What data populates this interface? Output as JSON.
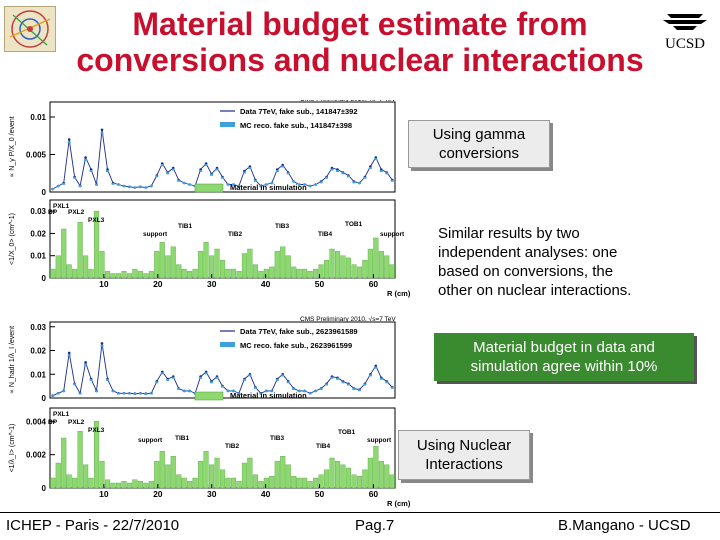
{
  "slide": {
    "title_line1": "Material budget estimate from",
    "title_line2": "conversions and nuclear interactions",
    "logo_text": "UCSD",
    "note_gamma_line1": "Using gamma",
    "note_gamma_line2": "conversions",
    "note_similar_line1": "Similar results by two",
    "note_similar_line2": "independent analyses: one",
    "note_similar_line3": "based on conversions, the",
    "note_similar_line4": "other on nuclear interactions.",
    "note_budget_line1": "Material budget in data and",
    "note_budget_line2": "simulation agree within 10%",
    "note_nuclear_line1": "Using Nuclear",
    "note_nuclear_line2": "Interactions",
    "footer_left": "ICHEP - Paris - 22/7/2010",
    "footer_center": "Pag.7",
    "footer_right": "B.Mangano - UCSD"
  },
  "colors": {
    "title": "#c8102e",
    "data": "#1a2a8a",
    "mc": "#3fa0e0",
    "material": "#8ed870",
    "green_box": "#3a8a30"
  },
  "chart_data": [
    {
      "type": "line",
      "panel": "conversions-rate",
      "title": "CMS Preliminary 2010, √s=7 TeV",
      "ylabel": "∝ N_γ P/X_0 /event",
      "y_ticks": [
        "0",
        "0.005",
        "0.01"
      ],
      "ylim": [
        0,
        0.012
      ],
      "x": [
        1,
        2,
        3,
        4,
        5,
        6,
        7,
        8,
        9,
        10,
        11,
        12,
        13,
        14,
        15,
        16,
        17,
        18,
        19,
        20,
        21,
        22,
        23,
        24,
        25,
        26,
        27,
        28,
        29,
        30,
        31,
        32,
        33,
        34,
        35,
        36,
        37,
        38,
        39,
        40,
        41,
        42,
        43,
        44,
        45,
        46,
        47,
        48,
        49,
        50,
        51,
        52,
        53,
        54,
        55,
        56,
        57,
        58,
        59,
        60,
        61,
        62,
        63
      ],
      "series": [
        {
          "name": "Data 7TeV, fake sub., 141847±392",
          "values": [
            0.0004,
            0.0008,
            0.0012,
            0.007,
            0.002,
            0.0008,
            0.0046,
            0.003,
            0.001,
            0.0083,
            0.003,
            0.0012,
            0.001,
            0.0008,
            0.0007,
            0.0006,
            0.0007,
            0.0006,
            0.0008,
            0.0022,
            0.0038,
            0.0026,
            0.0032,
            0.0016,
            0.0012,
            0.001,
            0.0008,
            0.003,
            0.0038,
            0.0024,
            0.0032,
            0.002,
            0.001,
            0.001,
            0.0008,
            0.0028,
            0.0034,
            0.0016,
            0.0008,
            0.001,
            0.0012,
            0.003,
            0.0036,
            0.0026,
            0.0014,
            0.001,
            0.001,
            0.0008,
            0.001,
            0.0014,
            0.002,
            0.0032,
            0.003,
            0.0026,
            0.0022,
            0.0014,
            0.0012,
            0.002,
            0.0034,
            0.0046,
            0.003,
            0.0026,
            0.0016
          ]
        },
        {
          "name": "MC reco. fake sub., 141847±398",
          "values": [
            0.0004,
            0.0008,
            0.0011,
            0.0066,
            0.0019,
            0.0008,
            0.0043,
            0.0028,
            0.001,
            0.0078,
            0.0028,
            0.0011,
            0.001,
            0.0008,
            0.0007,
            0.0006,
            0.0007,
            0.0006,
            0.0008,
            0.0021,
            0.0036,
            0.0025,
            0.003,
            0.0015,
            0.0012,
            0.001,
            0.0008,
            0.0028,
            0.0036,
            0.0023,
            0.003,
            0.0019,
            0.001,
            0.001,
            0.0008,
            0.0026,
            0.0032,
            0.0015,
            0.0008,
            0.001,
            0.0012,
            0.0028,
            0.0034,
            0.0025,
            0.0014,
            0.001,
            0.001,
            0.0008,
            0.001,
            0.0013,
            0.0019,
            0.003,
            0.0028,
            0.0025,
            0.0021,
            0.0013,
            0.0012,
            0.0019,
            0.0032,
            0.0044,
            0.0028,
            0.0025,
            0.0015
          ]
        }
      ]
    },
    {
      "type": "bar",
      "panel": "conversions-material",
      "ylabel": "<1/X_0> (cm^-1)",
      "xlabel": "R (cm)",
      "y_ticks": [
        "0",
        "0.01",
        "0.02",
        "0.03"
      ],
      "x_ticks": [
        "10",
        "20",
        "30",
        "40",
        "50",
        "60"
      ],
      "ylim": [
        0,
        0.035
      ],
      "legend": "Material in simulation",
      "annotations": [
        "PXL1",
        "BP",
        "PXL2",
        "PXL3",
        "TIB1",
        "TIB2",
        "TIB3",
        "TIB4",
        "TOB1",
        "support",
        "support"
      ],
      "values": [
        0.004,
        0.01,
        0.022,
        0.006,
        0.004,
        0.025,
        0.01,
        0.004,
        0.03,
        0.012,
        0.003,
        0.002,
        0.002,
        0.003,
        0.002,
        0.004,
        0.003,
        0.002,
        0.003,
        0.012,
        0.016,
        0.01,
        0.014,
        0.006,
        0.004,
        0.003,
        0.004,
        0.012,
        0.016,
        0.01,
        0.013,
        0.008,
        0.004,
        0.004,
        0.003,
        0.011,
        0.013,
        0.006,
        0.003,
        0.004,
        0.005,
        0.012,
        0.014,
        0.01,
        0.005,
        0.004,
        0.004,
        0.003,
        0.004,
        0.006,
        0.008,
        0.013,
        0.012,
        0.01,
        0.009,
        0.006,
        0.005,
        0.008,
        0.013,
        0.018,
        0.012,
        0.01,
        0.006
      ]
    },
    {
      "type": "line",
      "panel": "nuclear-rate",
      "title": "CMS Preliminary 2010, √s=7 TeV",
      "ylabel": "∝ N_hadr 1/λ_I /event",
      "y_ticks": [
        "0",
        "0.01",
        "0.02",
        "0.03"
      ],
      "ylim": [
        0,
        0.032
      ],
      "x": [
        1,
        2,
        3,
        4,
        5,
        6,
        7,
        8,
        9,
        10,
        11,
        12,
        13,
        14,
        15,
        16,
        17,
        18,
        19,
        20,
        21,
        22,
        23,
        24,
        25,
        26,
        27,
        28,
        29,
        30,
        31,
        32,
        33,
        34,
        35,
        36,
        37,
        38,
        39,
        40,
        41,
        42,
        43,
        44,
        45,
        46,
        47,
        48,
        49,
        50,
        51,
        52,
        53,
        54,
        55,
        56,
        57,
        58,
        59,
        60,
        61,
        62,
        63
      ],
      "series": [
        {
          "name": "Data 7TeV, fake sub., 2623961589",
          "values": [
            0.001,
            0.002,
            0.003,
            0.019,
            0.006,
            0.002,
            0.015,
            0.008,
            0.003,
            0.023,
            0.008,
            0.003,
            0.002,
            0.002,
            0.002,
            0.0018,
            0.002,
            0.0018,
            0.002,
            0.007,
            0.011,
            0.008,
            0.009,
            0.004,
            0.003,
            0.003,
            0.002,
            0.009,
            0.011,
            0.007,
            0.009,
            0.005,
            0.003,
            0.003,
            0.002,
            0.008,
            0.01,
            0.0045,
            0.002,
            0.003,
            0.003,
            0.008,
            0.01,
            0.007,
            0.004,
            0.003,
            0.003,
            0.002,
            0.003,
            0.004,
            0.006,
            0.009,
            0.0085,
            0.007,
            0.006,
            0.004,
            0.0035,
            0.006,
            0.01,
            0.0135,
            0.0085,
            0.007,
            0.0045
          ]
        },
        {
          "name": "MC reco. fake sub., 2623961599",
          "values": [
            0.001,
            0.0019,
            0.0029,
            0.018,
            0.0058,
            0.0019,
            0.0142,
            0.0076,
            0.0029,
            0.0218,
            0.0076,
            0.0029,
            0.0019,
            0.0019,
            0.0019,
            0.0017,
            0.0019,
            0.0017,
            0.0019,
            0.0066,
            0.0104,
            0.0076,
            0.0085,
            0.0038,
            0.0029,
            0.0029,
            0.0019,
            0.0085,
            0.0104,
            0.0066,
            0.0085,
            0.0048,
            0.0029,
            0.0029,
            0.0019,
            0.0076,
            0.0095,
            0.0043,
            0.0019,
            0.0029,
            0.0029,
            0.0076,
            0.0095,
            0.0066,
            0.0038,
            0.0029,
            0.0029,
            0.0019,
            0.0029,
            0.0038,
            0.0057,
            0.0085,
            0.0081,
            0.0066,
            0.0057,
            0.0038,
            0.0033,
            0.0057,
            0.0095,
            0.0128,
            0.0081,
            0.0066,
            0.0043
          ]
        }
      ]
    },
    {
      "type": "bar",
      "panel": "nuclear-material",
      "ylabel": "<1/λ_I> (cm^-1)",
      "xlabel": "R (cm)",
      "y_ticks": [
        "0",
        "0.002",
        "0.004"
      ],
      "x_ticks": [
        "10",
        "20",
        "30",
        "40",
        "50",
        "60"
      ],
      "ylim": [
        0,
        0.0048
      ],
      "legend": "Material in simulation",
      "annotations": [
        "PXL1",
        "BP",
        "PXL2",
        "PXL3",
        "TIB1",
        "TIB2",
        "TIB3",
        "TIB4",
        "TOB1",
        "support",
        "support"
      ],
      "values": [
        0.0006,
        0.0015,
        0.003,
        0.0008,
        0.0006,
        0.0034,
        0.0014,
        0.0006,
        0.004,
        0.0016,
        0.0005,
        0.0003,
        0.0003,
        0.0004,
        0.0003,
        0.0005,
        0.0004,
        0.0003,
        0.0004,
        0.0016,
        0.0022,
        0.0014,
        0.0019,
        0.0008,
        0.0006,
        0.0004,
        0.0006,
        0.0016,
        0.0022,
        0.0014,
        0.0018,
        0.0011,
        0.0006,
        0.0006,
        0.0004,
        0.0015,
        0.0018,
        0.0008,
        0.0004,
        0.0006,
        0.0007,
        0.0016,
        0.0019,
        0.0014,
        0.0007,
        0.0006,
        0.0006,
        0.0004,
        0.0006,
        0.0008,
        0.0011,
        0.0018,
        0.0016,
        0.0014,
        0.0012,
        0.0008,
        0.0007,
        0.0011,
        0.0018,
        0.0025,
        0.0016,
        0.0014,
        0.0008
      ]
    }
  ]
}
